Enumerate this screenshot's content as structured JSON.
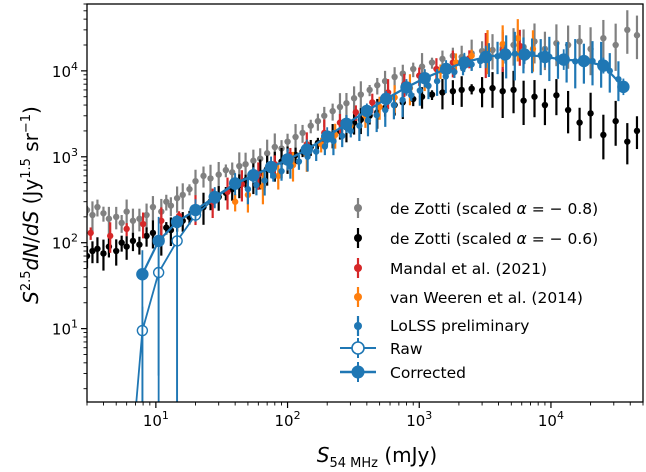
{
  "chart_data": {
    "type": "scatter",
    "title": "",
    "xlabel": "S_54MHz (mJy)",
    "ylabel": "S^2.5 dN/dS (Jy^1.5 sr^-1)",
    "xscale": "log",
    "yscale": "log",
    "xlim": [
      3,
      50000
    ],
    "ylim": [
      1.4,
      60000
    ],
    "x_ticks": [
      10,
      100,
      1000,
      10000
    ],
    "x_tick_labels": [
      "10^1",
      "10^2",
      "10^3",
      "10^4"
    ],
    "y_ticks": [
      10,
      100,
      1000,
      10000
    ],
    "y_tick_labels": [
      "10^1",
      "10^2",
      "10^3",
      "10^4"
    ],
    "grid": false,
    "legend_position": "lower-right",
    "colors": {
      "grey": "#808080",
      "black": "#000000",
      "red": "#d62728",
      "orange": "#ff7f0e",
      "blue": "#1f77b4"
    },
    "series": [
      {
        "name": "de Zotti (scaled α = −0.8)",
        "color": "#808080",
        "marker": "dot-errorbar",
        "points": [
          [
            3,
            240
          ],
          [
            3.3,
            210
          ],
          [
            3.6,
            260
          ],
          [
            4,
            220
          ],
          [
            4.4,
            190
          ],
          [
            5,
            200
          ],
          [
            5.5,
            170
          ],
          [
            6,
            230
          ],
          [
            6.7,
            180
          ],
          [
            7.5,
            190
          ],
          [
            8.5,
            210
          ],
          [
            9.5,
            260
          ],
          [
            11,
            230
          ],
          [
            12,
            300
          ],
          [
            13,
            270
          ],
          [
            14.5,
            330
          ],
          [
            16,
            360
          ],
          [
            18,
            420
          ],
          [
            20,
            520
          ],
          [
            23,
            600
          ],
          [
            26,
            560
          ],
          [
            30,
            620
          ],
          [
            34,
            700
          ],
          [
            38,
            660
          ],
          [
            43,
            780
          ],
          [
            48,
            820
          ],
          [
            55,
            900
          ],
          [
            62,
            950
          ],
          [
            70,
            1100
          ],
          [
            80,
            1300
          ],
          [
            90,
            1250
          ],
          [
            100,
            1500
          ],
          [
            115,
            1700
          ],
          [
            130,
            1900
          ],
          [
            150,
            2300
          ],
          [
            170,
            2600
          ],
          [
            190,
            3000
          ],
          [
            220,
            3400
          ],
          [
            250,
            3800
          ],
          [
            280,
            4200
          ],
          [
            320,
            4800
          ],
          [
            360,
            5300
          ],
          [
            420,
            6000
          ],
          [
            480,
            6800
          ],
          [
            550,
            7600
          ],
          [
            650,
            8500
          ],
          [
            750,
            9300
          ],
          [
            900,
            10500
          ],
          [
            1050,
            11200
          ],
          [
            1250,
            12500
          ],
          [
            1500,
            13800
          ],
          [
            1800,
            15000
          ],
          [
            2100,
            14500
          ],
          [
            2500,
            16000
          ],
          [
            3000,
            17000
          ],
          [
            3600,
            17500
          ],
          [
            4300,
            18500
          ],
          [
            5200,
            20000
          ],
          [
            6200,
            19000
          ],
          [
            7500,
            22000
          ],
          [
            9000,
            18000
          ],
          [
            11000,
            21000
          ],
          [
            13500,
            20000
          ],
          [
            16500,
            22000
          ],
          [
            20000,
            18000
          ],
          [
            25000,
            24000
          ],
          [
            31000,
            20000
          ],
          [
            38000,
            30000
          ],
          [
            45000,
            26000
          ]
        ]
      },
      {
        "name": "de Zotti (scaled α = −0.6)",
        "color": "#000000",
        "marker": "dot-errorbar",
        "points": [
          [
            3,
            70
          ],
          [
            3.3,
            80
          ],
          [
            3.6,
            85
          ],
          [
            4,
            75
          ],
          [
            4.4,
            90
          ],
          [
            5,
            80
          ],
          [
            5.5,
            100
          ],
          [
            6,
            90
          ],
          [
            6.7,
            105
          ],
          [
            7.5,
            95
          ],
          [
            8.5,
            120
          ],
          [
            9.5,
            130
          ],
          [
            11,
            110
          ],
          [
            12,
            150
          ],
          [
            13,
            140
          ],
          [
            14.5,
            160
          ],
          [
            16,
            180
          ],
          [
            18,
            200
          ],
          [
            20,
            230
          ],
          [
            23,
            260
          ],
          [
            26,
            300
          ],
          [
            30,
            340
          ],
          [
            34,
            380
          ],
          [
            38,
            420
          ],
          [
            43,
            470
          ],
          [
            48,
            530
          ],
          [
            55,
            580
          ],
          [
            62,
            650
          ],
          [
            70,
            720
          ],
          [
            80,
            800
          ],
          [
            90,
            880
          ],
          [
            100,
            950
          ],
          [
            115,
            1050
          ],
          [
            130,
            1150
          ],
          [
            150,
            1300
          ],
          [
            170,
            1450
          ],
          [
            190,
            1600
          ],
          [
            220,
            1800
          ],
          [
            250,
            2000
          ],
          [
            280,
            2200
          ],
          [
            320,
            2500
          ],
          [
            360,
            2700
          ],
          [
            420,
            3000
          ],
          [
            480,
            3300
          ],
          [
            550,
            3700
          ],
          [
            650,
            4000
          ],
          [
            750,
            4300
          ],
          [
            900,
            4700
          ],
          [
            1050,
            5000
          ],
          [
            1250,
            5300
          ],
          [
            1500,
            5600
          ],
          [
            1800,
            5800
          ],
          [
            2100,
            6000
          ],
          [
            2500,
            6200
          ],
          [
            3000,
            5900
          ],
          [
            3600,
            6300
          ],
          [
            4300,
            5800
          ],
          [
            5200,
            6000
          ],
          [
            6200,
            4500
          ],
          [
            7500,
            5000
          ],
          [
            9000,
            4000
          ],
          [
            11000,
            5200
          ],
          [
            13500,
            3500
          ],
          [
            16500,
            2500
          ],
          [
            20000,
            3200
          ],
          [
            25000,
            1800
          ],
          [
            31000,
            2600
          ],
          [
            38000,
            1500
          ],
          [
            45000,
            2000
          ]
        ]
      },
      {
        "name": "Mandal et al. (2021)",
        "color": "#d62728",
        "marker": "dot-errorbar",
        "points": [
          [
            3.2,
            130
          ],
          [
            4.5,
            120
          ],
          [
            6,
            145
          ],
          [
            8,
            165
          ],
          [
            11,
            180
          ],
          [
            15,
            205
          ],
          [
            20,
            250
          ],
          [
            27,
            300
          ],
          [
            35,
            390
          ],
          [
            45,
            480
          ],
          [
            60,
            620
          ],
          [
            80,
            820
          ],
          [
            105,
            1050
          ],
          [
            140,
            1400
          ],
          [
            190,
            1900
          ],
          [
            250,
            2500
          ],
          [
            330,
            3300
          ],
          [
            440,
            4300
          ],
          [
            580,
            5600
          ],
          [
            770,
            7000
          ],
          [
            1000,
            8800
          ],
          [
            1350,
            10500
          ],
          [
            1800,
            12500
          ],
          [
            2400,
            14000
          ],
          [
            3200,
            16000
          ],
          [
            4300,
            17500
          ],
          [
            5800,
            19500
          ]
        ]
      },
      {
        "name": "van Weeren et al. (2014)",
        "color": "#ff7f0e",
        "marker": "dot-errorbar",
        "points": [
          [
            40,
            300
          ],
          [
            50,
            360
          ],
          [
            65,
            450
          ],
          [
            85,
            600
          ],
          [
            110,
            800
          ],
          [
            140,
            1050
          ],
          [
            180,
            1400
          ],
          [
            230,
            1800
          ],
          [
            300,
            2300
          ],
          [
            390,
            3000
          ],
          [
            500,
            3800
          ],
          [
            650,
            4900
          ],
          [
            850,
            6300
          ],
          [
            1100,
            8000
          ],
          [
            1450,
            10000
          ],
          [
            1900,
            12500
          ],
          [
            2500,
            15000
          ],
          [
            3300,
            17500
          ],
          [
            4300,
            20500
          ],
          [
            5600,
            24000
          ],
          [
            7300,
            18000
          ]
        ]
      },
      {
        "name": "LoLSS preliminary",
        "color": "#1f77b4",
        "marker": "dot-errorbar",
        "points": [
          [
            50,
            420
          ],
          [
            58,
            470
          ],
          [
            67,
            530
          ],
          [
            78,
            600
          ],
          [
            90,
            680
          ],
          [
            105,
            780
          ],
          [
            122,
            880
          ],
          [
            142,
            1000
          ],
          [
            165,
            1150
          ],
          [
            192,
            1320
          ],
          [
            223,
            1520
          ],
          [
            260,
            1750
          ],
          [
            302,
            2000
          ],
          [
            351,
            2300
          ],
          [
            408,
            2650
          ],
          [
            475,
            3050
          ],
          [
            552,
            3500
          ],
          [
            642,
            4000
          ],
          [
            747,
            4600
          ],
          [
            869,
            5200
          ],
          [
            1010,
            5900
          ],
          [
            1175,
            6700
          ],
          [
            1366,
            7600
          ],
          [
            1589,
            8600
          ],
          [
            1848,
            9700
          ],
          [
            2149,
            10800
          ],
          [
            2499,
            11900
          ],
          [
            2906,
            13000
          ],
          [
            3380,
            14000
          ],
          [
            3931,
            14800
          ],
          [
            4571,
            15400
          ],
          [
            5316,
            15800
          ],
          [
            6182,
            15900
          ],
          [
            7189,
            15700
          ],
          [
            8361,
            15200
          ],
          [
            9723,
            14600
          ],
          [
            11307,
            13900
          ],
          [
            13150,
            13300
          ],
          [
            15293,
            12900
          ],
          [
            17785,
            12800
          ],
          [
            20682,
            13000
          ],
          [
            24052,
            12500
          ],
          [
            27971,
            10000
          ],
          [
            32529,
            8000
          ]
        ]
      },
      {
        "name": "Raw",
        "color": "#1f77b4",
        "marker": "open-circle-line",
        "points": [
          [
            7.9,
            9.5
          ],
          [
            10.5,
            45
          ],
          [
            14.5,
            105
          ],
          [
            20,
            210
          ],
          [
            28,
            330
          ],
          [
            40,
            480
          ],
          [
            55,
            600
          ],
          [
            75,
            750
          ],
          [
            100,
            920
          ],
          [
            140,
            1200
          ],
          [
            200,
            1700
          ],
          [
            280,
            2400
          ],
          [
            400,
            3400
          ],
          [
            560,
            4700
          ],
          [
            800,
            6400
          ],
          [
            1100,
            8200
          ],
          [
            1600,
            10500
          ],
          [
            2200,
            12500
          ],
          [
            3200,
            14500
          ],
          [
            4500,
            15500
          ],
          [
            6300,
            15500
          ],
          [
            9000,
            14500
          ],
          [
            12500,
            13500
          ],
          [
            17800,
            13000
          ],
          [
            25000,
            11500
          ],
          [
            35500,
            6500
          ]
        ]
      },
      {
        "name": "Corrected",
        "color": "#1f77b4",
        "marker": "filled-circle-line",
        "points": [
          [
            7.9,
            43
          ],
          [
            10.5,
            105
          ],
          [
            14.5,
            175
          ],
          [
            20,
            240
          ],
          [
            28,
            340
          ],
          [
            40,
            490
          ],
          [
            55,
            610
          ],
          [
            75,
            760
          ],
          [
            100,
            930
          ],
          [
            140,
            1210
          ],
          [
            200,
            1720
          ],
          [
            280,
            2420
          ],
          [
            400,
            3420
          ],
          [
            560,
            4720
          ],
          [
            800,
            6420
          ],
          [
            1100,
            8220
          ],
          [
            1600,
            10520
          ],
          [
            2200,
            12520
          ],
          [
            3200,
            14520
          ],
          [
            4500,
            15520
          ],
          [
            6300,
            15520
          ],
          [
            9000,
            14520
          ],
          [
            12500,
            13520
          ],
          [
            17800,
            13020
          ],
          [
            25000,
            11520
          ],
          [
            35500,
            6520
          ]
        ]
      }
    ]
  }
}
